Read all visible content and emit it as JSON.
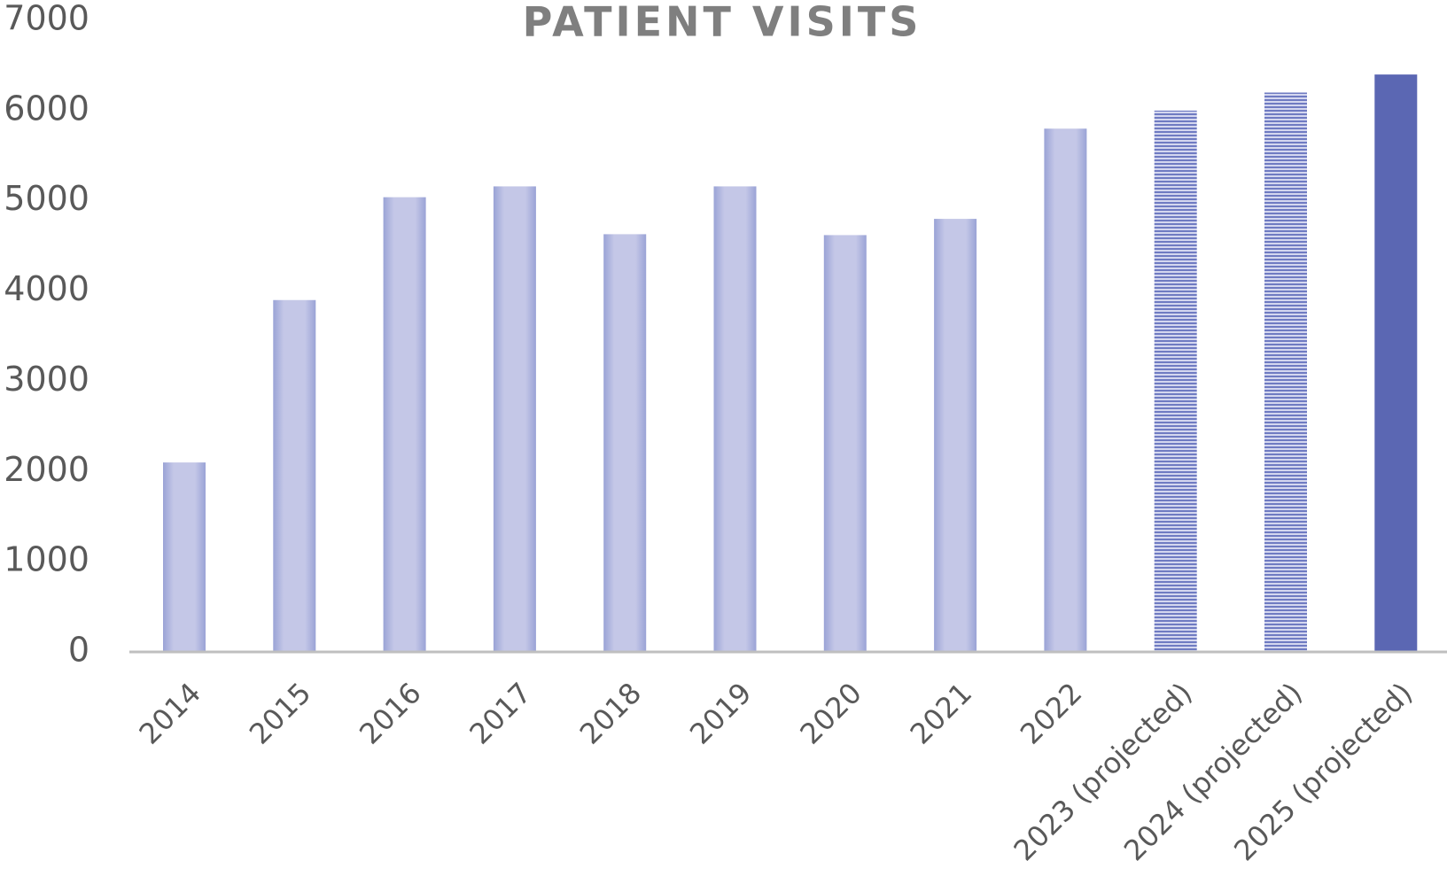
{
  "chart_data": {
    "type": "bar",
    "title": "PATIENT VISITS",
    "categories": [
      "2014",
      "2015",
      "2016",
      "2017",
      "2018",
      "2019",
      "2020",
      "2021",
      "2022",
      "2023 (projected)",
      "2024 (projected)",
      "2025 (projected)"
    ],
    "values": [
      2100,
      3900,
      5040,
      5160,
      4630,
      5160,
      4620,
      4800,
      5800,
      6000,
      6200,
      6400
    ],
    "styles": [
      "gradient",
      "gradient",
      "gradient",
      "gradient",
      "gradient",
      "gradient",
      "gradient",
      "gradient",
      "gradient",
      "stripes",
      "stripes",
      "solid"
    ],
    "color": "#5b67b3",
    "ylim": [
      0,
      7000
    ],
    "yticks": [
      0,
      1000,
      2000,
      3000,
      4000,
      5000,
      6000,
      7000
    ],
    "grid": false
  }
}
